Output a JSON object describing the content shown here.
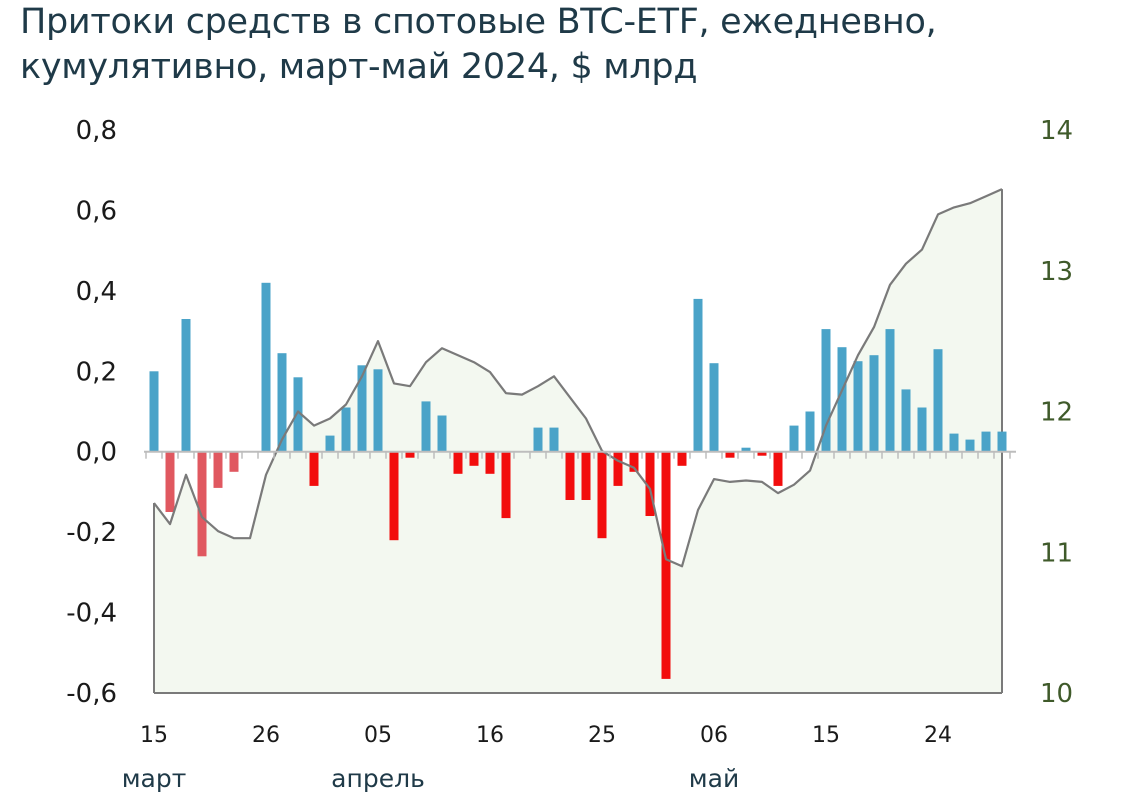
{
  "chart_data": {
    "type": "bar",
    "title": "Притоки средств в спотовые BTC-ETF, ежедневно, кумулятивно, март-май 2024, $ млрд",
    "title_lines": [
      "Притоки средств в спотовые BTC-ETF, ежедневно,",
      "кумулятивно, март-май 2024, $ млрд"
    ],
    "ylim_left": [
      -0.6,
      0.8
    ],
    "ylim_right": [
      10,
      14
    ],
    "yticks_left": [
      "0,8",
      "0,6",
      "0,4",
      "0,2",
      "0,0",
      "-0,2",
      "-0,4",
      "-0,6"
    ],
    "yticks_right": [
      "14",
      "13",
      "12",
      "11",
      "10"
    ],
    "x_tick_labels": [
      {
        "label": "15",
        "day_index": 0
      },
      {
        "label": "26",
        "day_index": 7
      },
      {
        "label": "05",
        "day_index": 14
      },
      {
        "label": "16",
        "day_index": 21
      },
      {
        "label": "25",
        "day_index": 28
      },
      {
        "label": "06",
        "day_index": 35
      },
      {
        "label": "15",
        "day_index": 42
      },
      {
        "label": "24",
        "day_index": 49
      }
    ],
    "month_labels": [
      {
        "label": "март",
        "day_index": 0
      },
      {
        "label": "апрель",
        "day_index": 14
      },
      {
        "label": "май",
        "day_index": 35
      }
    ],
    "grid": false,
    "colors": {
      "inflow": "#4aa3c8",
      "outflow_march": "#e05860",
      "outflow": "#f20d0d",
      "cumulative_line": "#7a7a7a",
      "cumulative_fill": "#f3f8f0",
      "right_axis": "#3f5a2a"
    },
    "series": [
      {
        "name": "daily",
        "type": "bar",
        "axis": "left",
        "values": [
          0.2,
          -0.15,
          0.33,
          -0.26,
          -0.09,
          -0.05,
          0,
          0.42,
          0.245,
          0.185,
          -0.085,
          0.04,
          0.11,
          0.215,
          0.205,
          -0.22,
          -0.015,
          0.125,
          0.09,
          -0.055,
          -0.035,
          -0.055,
          -0.165,
          0,
          0.06,
          0.06,
          -0.12,
          -0.12,
          -0.215,
          -0.085,
          -0.05,
          -0.16,
          -0.565,
          -0.035,
          0.38,
          0.22,
          -0.015,
          0.01,
          -0.01,
          -0.085,
          0.065,
          0.1,
          0.305,
          0.26,
          0.225,
          0.24,
          0.305,
          0.155,
          0.11,
          0.255,
          0.045,
          0.03,
          0.05,
          0.05
        ]
      },
      {
        "name": "cumulative",
        "type": "area",
        "axis": "right",
        "values": [
          11.35,
          11.2,
          11.55,
          11.25,
          11.15,
          11.1,
          11.1,
          11.55,
          11.8,
          12.0,
          11.9,
          11.95,
          12.05,
          12.25,
          12.5,
          12.2,
          12.18,
          12.35,
          12.45,
          12.4,
          12.35,
          12.28,
          12.13,
          12.12,
          12.18,
          12.25,
          12.1,
          11.95,
          11.72,
          11.65,
          11.6,
          11.45,
          10.95,
          10.9,
          11.3,
          11.52,
          11.5,
          11.51,
          11.5,
          11.42,
          11.48,
          11.58,
          11.9,
          12.15,
          12.4,
          12.6,
          12.9,
          13.05,
          13.15,
          13.4,
          13.45,
          13.48,
          13.53,
          13.58
        ]
      }
    ]
  }
}
